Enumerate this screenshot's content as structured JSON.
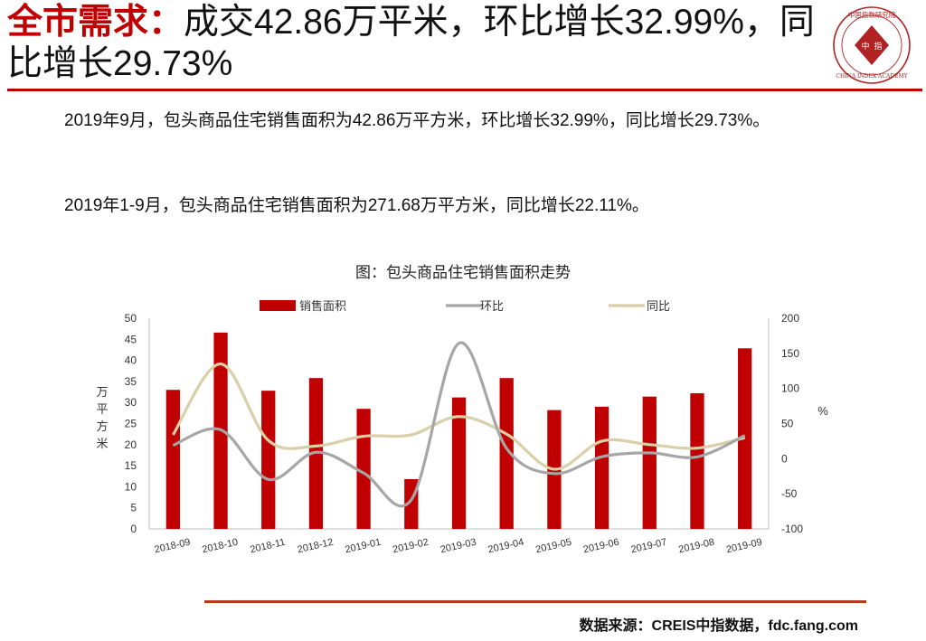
{
  "slide": {
    "title_highlight": "全市需求：",
    "title_rest": "成交42.86万平米，环比增长32.99%，同比增长29.73%",
    "paragraph1": "2019年9月，包头商品住宅销售面积为42.86万平方米，环比增长32.99%，同比增长29.73%。",
    "paragraph2": "2019年1-9月，包头商品住宅销售面积为271.68万平方米，同比增长22.11%。",
    "source": "数据来源：CREIS中指数据，fdc.fang.com",
    "seal_char_left": "中",
    "seal_char_right": "指",
    "seal_outer_text": "中国指数研究院",
    "seal_english": "CHINA INDEX ACADEMY"
  },
  "colors": {
    "accent": "#c00000",
    "bars": "#c00000",
    "mom_line": "#a6a6a6",
    "yoy_line": "#d9cfa8"
  },
  "chart_data": {
    "type": "bar",
    "title": "图：包头商品住宅销售面积走势",
    "categories": [
      "2018-09",
      "2018-10",
      "2018-11",
      "2018-12",
      "2019-01",
      "2019-02",
      "2019-03",
      "2019-04",
      "2019-05",
      "2019-06",
      "2019-07",
      "2019-08",
      "2019-09"
    ],
    "series": [
      {
        "name": "销售面积",
        "type": "bar",
        "axis": "left",
        "values": [
          33.0,
          46.6,
          32.8,
          35.8,
          28.5,
          11.8,
          31.2,
          35.8,
          28.2,
          29.0,
          31.4,
          32.2,
          42.86
        ]
      },
      {
        "name": "环比",
        "type": "line",
        "axis": "right",
        "values": [
          19.0,
          41.2,
          -29.6,
          9.1,
          -20.4,
          -58.6,
          164.4,
          14.7,
          -21.2,
          2.8,
          8.3,
          2.5,
          32.99
        ]
      },
      {
        "name": "同比",
        "type": "line",
        "axis": "right",
        "values": [
          34.0,
          135.0,
          26.0,
          18.0,
          32.0,
          34.0,
          60.0,
          35.0,
          -15.0,
          25.0,
          20.0,
          15.0,
          29.73
        ]
      }
    ],
    "ylabel_left": "万平方米",
    "ylabel_right": "%",
    "ylim_left": [
      0,
      50
    ],
    "yticks_left": [
      0,
      5,
      10,
      15,
      20,
      25,
      30,
      35,
      40,
      45,
      50
    ],
    "ylim_right": [
      -100,
      200
    ],
    "yticks_right": [
      -100,
      -50,
      0,
      50,
      100,
      150,
      200
    ],
    "legend_position": "top",
    "grid": false
  }
}
